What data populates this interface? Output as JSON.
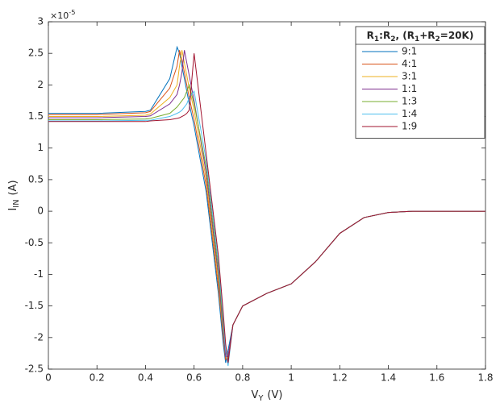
{
  "chart_data": {
    "type": "line",
    "y_multiplier_parts": [
      {
        "text": "×10"
      },
      {
        "text": "-5",
        "sup": true
      }
    ],
    "xlabel_parts": [
      {
        "text": "V"
      },
      {
        "text": "Y",
        "sub": true
      },
      {
        "text": "(V)"
      }
    ],
    "ylabel_parts": [
      {
        "text": "I"
      },
      {
        "text": "IN",
        "sub": true
      },
      {
        "text": "(A)"
      }
    ],
    "legend_title_parts": [
      {
        "text": "R"
      },
      {
        "text": "1",
        "sub": true
      },
      {
        "text": ":R"
      },
      {
        "text": "2",
        "sub": true
      },
      {
        "text": ", (R"
      },
      {
        "text": "1",
        "sub": true
      },
      {
        "text": "+R"
      },
      {
        "text": "2",
        "sub": true
      },
      {
        "text": "=20K)"
      }
    ],
    "legend": "top-right",
    "x": [
      0,
      0.2,
      0.4,
      0.42,
      0.5,
      0.53,
      0.54,
      0.55,
      0.56,
      0.57,
      0.58,
      0.6,
      0.65,
      0.7,
      0.72,
      0.73,
      0.74,
      0.76,
      0.8,
      0.9,
      1.0,
      1.1,
      1.2,
      1.3,
      1.4,
      1.5,
      1.6,
      1.8
    ],
    "series": [
      {
        "name": "9:1",
        "color": "#0072bd",
        "values": [
          1.55,
          1.55,
          1.58,
          1.6,
          2.1,
          2.6,
          2.5,
          2.3,
          2.1,
          1.9,
          1.7,
          1.35,
          0.3,
          -1.3,
          -2.1,
          -2.4,
          -2.2,
          -1.8,
          -1.5,
          -1.3,
          -1.15,
          -0.8,
          -0.35,
          -0.1,
          -0.02,
          0,
          0,
          0
        ]
      },
      {
        "name": "4:1",
        "color": "#d95319",
        "values": [
          1.53,
          1.53,
          1.56,
          1.58,
          1.95,
          2.3,
          2.55,
          2.4,
          2.2,
          2.0,
          1.8,
          1.45,
          0.4,
          -1.2,
          -2.0,
          -2.35,
          -2.3,
          -1.8,
          -1.5,
          -1.3,
          -1.15,
          -0.8,
          -0.35,
          -0.1,
          -0.02,
          0,
          0,
          0
        ]
      },
      {
        "name": "3:1",
        "color": "#edb120",
        "values": [
          1.5,
          1.5,
          1.52,
          1.54,
          1.8,
          2.0,
          2.3,
          2.55,
          2.35,
          2.15,
          1.95,
          1.6,
          0.5,
          -1.1,
          -1.95,
          -2.3,
          -2.35,
          -1.8,
          -1.5,
          -1.3,
          -1.15,
          -0.8,
          -0.35,
          -0.1,
          -0.02,
          0,
          0,
          0
        ]
      },
      {
        "name": "1:1",
        "color": "#7e2f8e",
        "values": [
          1.48,
          1.48,
          1.5,
          1.51,
          1.7,
          1.85,
          2.0,
          2.2,
          2.55,
          2.35,
          2.15,
          1.75,
          0.6,
          -1.0,
          -1.9,
          -2.3,
          -2.3,
          -1.8,
          -1.5,
          -1.3,
          -1.15,
          -0.8,
          -0.35,
          -0.1,
          -0.02,
          0,
          0,
          0
        ]
      },
      {
        "name": "1:3",
        "color": "#77ac30",
        "values": [
          1.45,
          1.45,
          1.46,
          1.47,
          1.55,
          1.65,
          1.7,
          1.75,
          1.8,
          1.9,
          2.0,
          1.7,
          0.7,
          -0.9,
          -1.8,
          -2.2,
          -2.4,
          -1.8,
          -1.5,
          -1.3,
          -1.15,
          -0.8,
          -0.35,
          -0.1,
          -0.02,
          0,
          0,
          0
        ]
      },
      {
        "name": "1:4",
        "color": "#4dbeee",
        "values": [
          1.43,
          1.43,
          1.44,
          1.44,
          1.5,
          1.55,
          1.57,
          1.6,
          1.65,
          1.7,
          1.8,
          1.9,
          0.8,
          -0.8,
          -1.7,
          -2.2,
          -2.45,
          -1.8,
          -1.5,
          -1.3,
          -1.15,
          -0.8,
          -0.35,
          -0.1,
          -0.02,
          0,
          0,
          0
        ]
      },
      {
        "name": "1:9",
        "color": "#a2142f",
        "values": [
          1.42,
          1.42,
          1.42,
          1.43,
          1.45,
          1.47,
          1.48,
          1.5,
          1.52,
          1.55,
          1.6,
          2.5,
          0.9,
          -0.7,
          -1.6,
          -2.1,
          -2.4,
          -1.8,
          -1.5,
          -1.3,
          -1.15,
          -0.8,
          -0.35,
          -0.1,
          -0.02,
          0,
          0,
          0
        ]
      }
    ],
    "xlim": [
      0,
      1.8
    ],
    "xticks": [
      0,
      0.2,
      0.4,
      0.6,
      0.8,
      1,
      1.2,
      1.4,
      1.6,
      1.8
    ],
    "ylim": [
      -2.5,
      3
    ],
    "yticks": [
      -2.5,
      -2,
      -1.5,
      -1,
      -0.5,
      0,
      0.5,
      1,
      1.5,
      2,
      2.5,
      3
    ],
    "grid": false
  }
}
